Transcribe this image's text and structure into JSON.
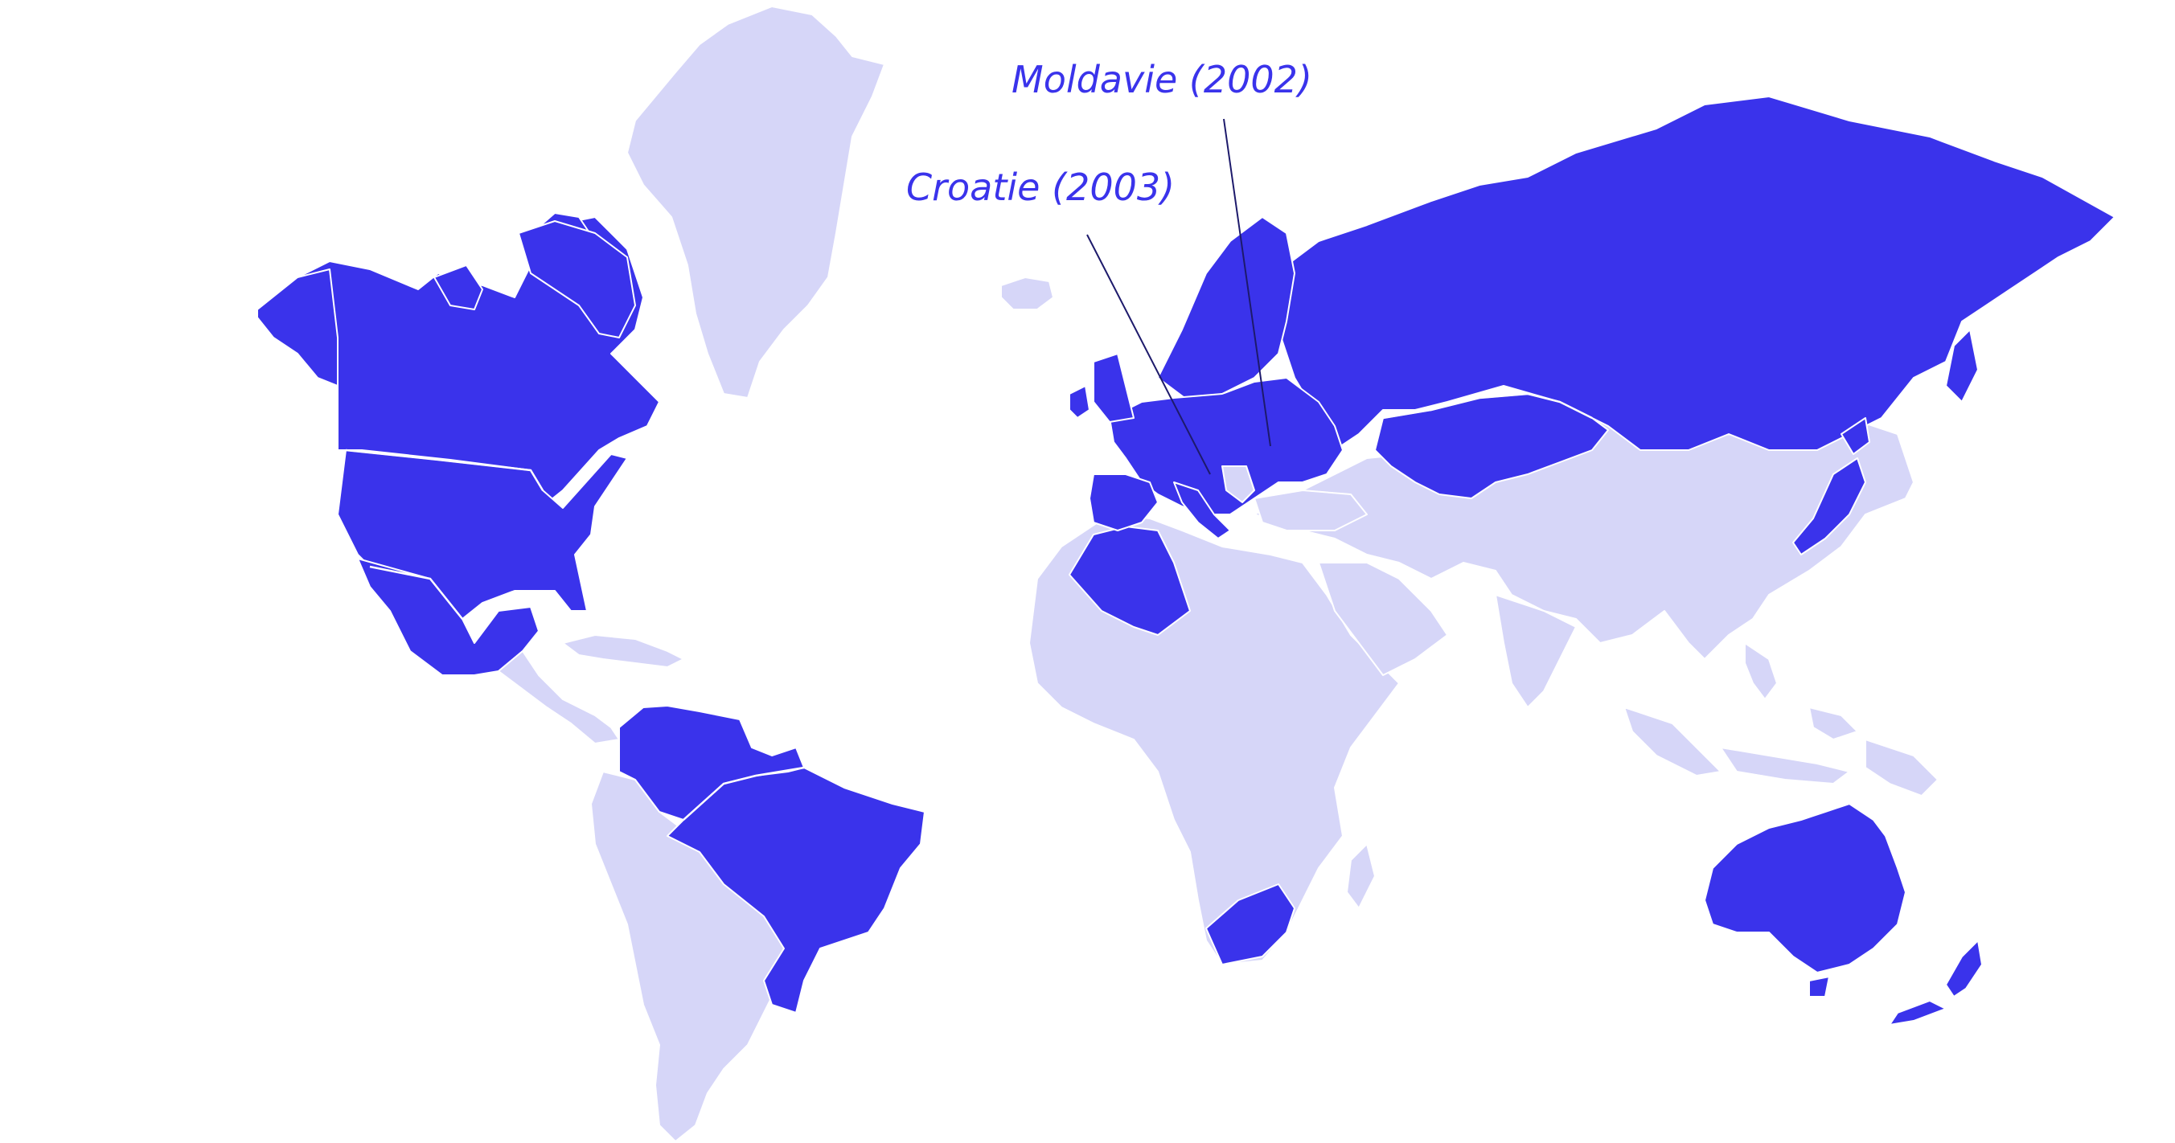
{
  "map": {
    "colors": {
      "highlight": "#3a33eb",
      "base": "#d6d6f8",
      "background": "#ffffff",
      "leader_line": "#1d1a6b"
    },
    "highlighted_regions": [
      "Canada",
      "United States",
      "Mexico",
      "Venezuela",
      "Colombia",
      "Guyana",
      "Suriname",
      "Brazil",
      "Iceland-excluded",
      "Europe",
      "Russia",
      "Kazakhstan",
      "Uzbekistan",
      "Kyrgyzstan",
      "Morocco",
      "Algeria",
      "South Africa",
      "Australia",
      "New Zealand",
      "Japan"
    ],
    "annotations": [
      {
        "label": "Moldavie (2002)"
      },
      {
        "label": "Croatie (2003)"
      }
    ]
  }
}
